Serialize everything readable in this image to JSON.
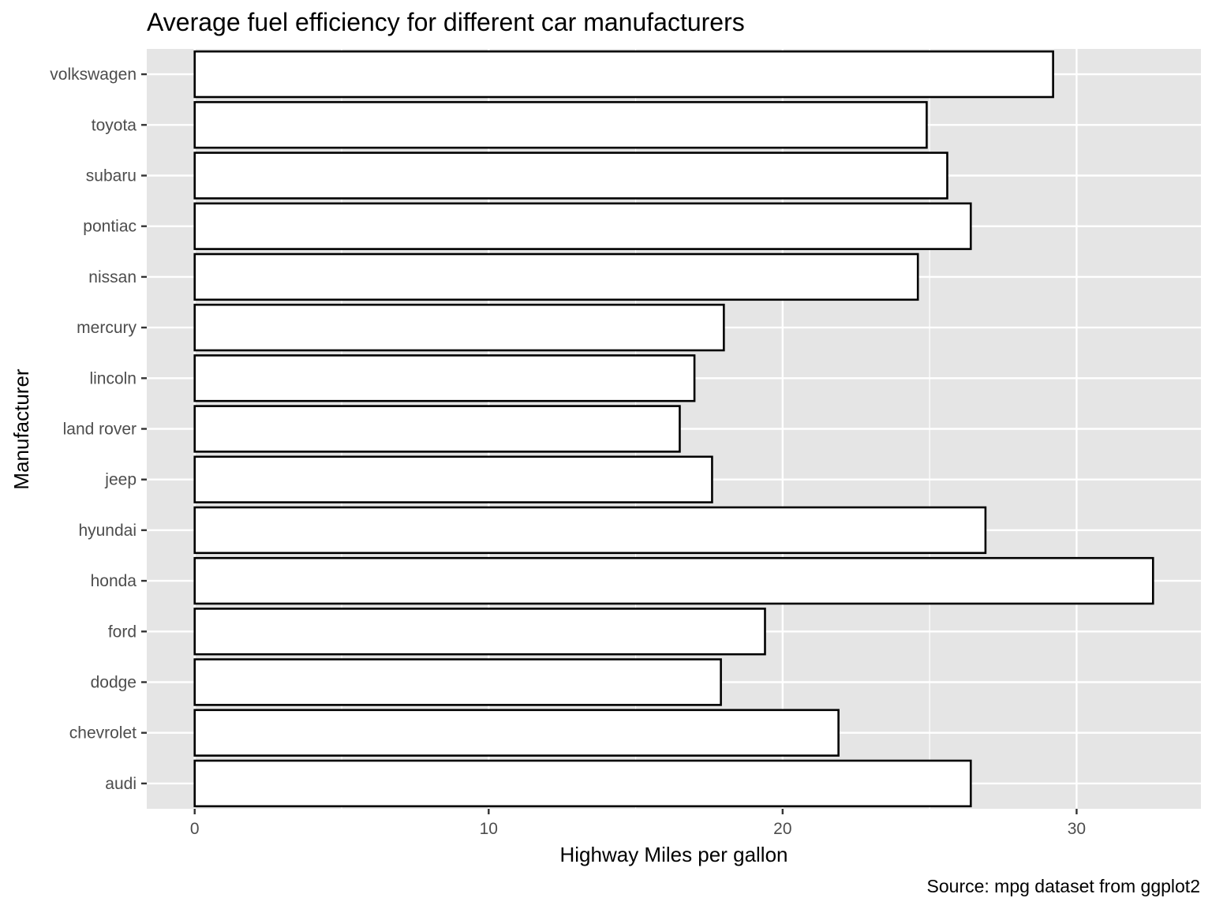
{
  "chart_data": {
    "type": "bar",
    "orientation": "horizontal",
    "title": "Average fuel efficiency for different car manufacturers",
    "xlabel": "Highway Miles per gallon",
    "ylabel": "Manufacturer",
    "caption": "Source: mpg dataset from ggplot2",
    "categories": [
      "audi",
      "chevrolet",
      "dodge",
      "ford",
      "honda",
      "hyundai",
      "jeep",
      "land rover",
      "lincoln",
      "mercury",
      "nissan",
      "pontiac",
      "subaru",
      "toyota",
      "volkswagen"
    ],
    "values": [
      26.4,
      21.9,
      17.9,
      19.4,
      32.6,
      26.9,
      17.6,
      16.5,
      17.0,
      18.0,
      24.6,
      26.4,
      25.6,
      24.9,
      29.2
    ],
    "xlim": [
      -1.63,
      34.23
    ],
    "xticks": [
      0,
      10,
      20,
      30
    ],
    "xtick_labels": [
      "0",
      "10",
      "20",
      "30"
    ],
    "grid": true,
    "legend": "none",
    "colors": {
      "panel_background": "#e5e5e5",
      "grid_line": "#ffffff",
      "bar_fill": "#ffffff",
      "bar_outline": "#000000",
      "tick_label": "#4d4d4d",
      "tick_mark": "#333333"
    }
  }
}
